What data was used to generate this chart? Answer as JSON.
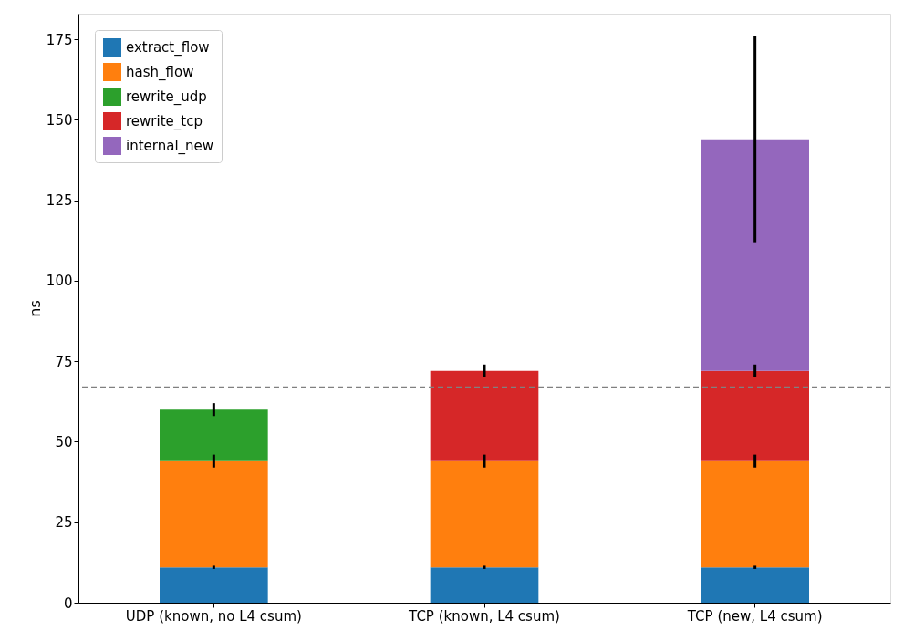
{
  "chart_data": {
    "type": "bar",
    "stacked": true,
    "ylabel": "ns",
    "categories": [
      "UDP (known, no L4 csum)",
      "TCP (known, L4 csum)",
      "TCP (new, L4 csum)"
    ],
    "series": [
      {
        "name": "extract_flow",
        "color": "#1f77b4",
        "values": [
          11,
          11,
          11
        ],
        "errors": [
          0.5,
          0.5,
          0.5
        ]
      },
      {
        "name": "hash_flow",
        "color": "#ff7f0e",
        "values": [
          33,
          33,
          33
        ],
        "errors": [
          2,
          2,
          2
        ]
      },
      {
        "name": "rewrite_udp",
        "color": "#2ca02c",
        "values": [
          16,
          null,
          null
        ],
        "errors": [
          2,
          null,
          null
        ]
      },
      {
        "name": "rewrite_tcp",
        "color": "#d62728",
        "values": [
          null,
          28,
          28
        ],
        "errors": [
          null,
          2,
          2
        ]
      },
      {
        "name": "internal_new",
        "color": "#9467bd",
        "values": [
          null,
          null,
          72
        ],
        "errors": [
          null,
          null,
          32
        ]
      }
    ],
    "ylim": [
      0,
      183
    ],
    "yticks": [
      0,
      25,
      50,
      75,
      100,
      125,
      150,
      175
    ],
    "ref_lines": [
      {
        "axis": "y",
        "value": 67,
        "color": "#808080",
        "line_style": "dashed"
      }
    ],
    "legend": "top left",
    "grid": false
  }
}
